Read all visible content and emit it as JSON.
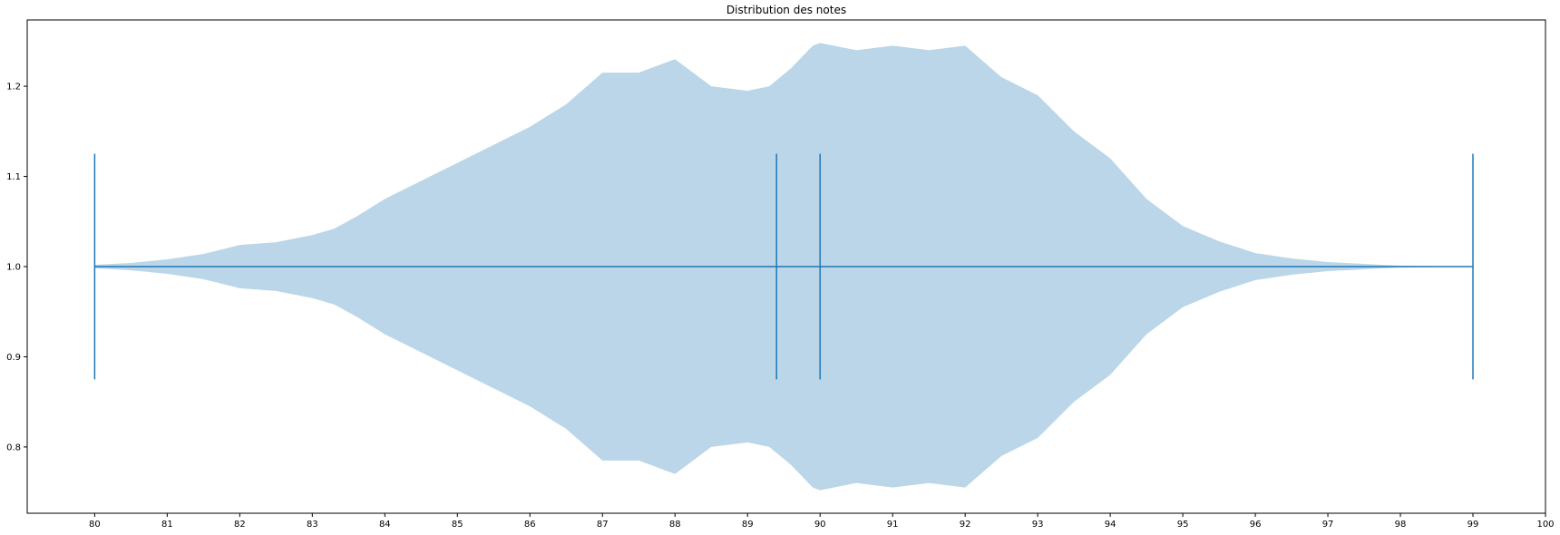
{
  "chart_data": {
    "type": "violin",
    "orientation": "horizontal",
    "title": "Distribution des notes",
    "xlabel": "",
    "ylabel": "",
    "xlim": [
      79.07,
      100
    ],
    "ylim": [
      0.7265,
      1.2735
    ],
    "xticks": [
      80,
      81,
      82,
      83,
      84,
      85,
      86,
      87,
      88,
      89,
      90,
      91,
      92,
      93,
      94,
      95,
      96,
      97,
      98,
      99,
      100
    ],
    "yticks": [
      0.8,
      0.9,
      1.0,
      1.1,
      1.2
    ],
    "position": 1.0,
    "min": 80,
    "max": 99,
    "mean": 89.4,
    "median": 90,
    "cap_half_height": 0.125,
    "grid": false,
    "colors": {
      "body_fill": "#1f77b4",
      "body_alpha": 0.3,
      "lines": "#1f77b4"
    },
    "density_profile": {
      "x": [
        80,
        80.5,
        81,
        81.5,
        82,
        82.5,
        83,
        83.3,
        83.6,
        84,
        84.5,
        85,
        85.5,
        86,
        86.5,
        87,
        87.5,
        88,
        88.5,
        89,
        89.3,
        89.6,
        89.9,
        90,
        90.5,
        91,
        91.5,
        92,
        92.5,
        93,
        93.5,
        94,
        94.5,
        95,
        95.5,
        96,
        96.5,
        97,
        97.5,
        98,
        98.5,
        99
      ],
      "half_width": [
        0.002,
        0.004,
        0.008,
        0.014,
        0.024,
        0.027,
        0.035,
        0.042,
        0.055,
        0.075,
        0.095,
        0.115,
        0.135,
        0.155,
        0.18,
        0.215,
        0.215,
        0.23,
        0.2,
        0.195,
        0.2,
        0.22,
        0.245,
        0.248,
        0.24,
        0.245,
        0.24,
        0.245,
        0.21,
        0.19,
        0.15,
        0.12,
        0.075,
        0.045,
        0.028,
        0.015,
        0.009,
        0.005,
        0.003,
        0.001,
        0.0005,
        0
      ]
    }
  }
}
